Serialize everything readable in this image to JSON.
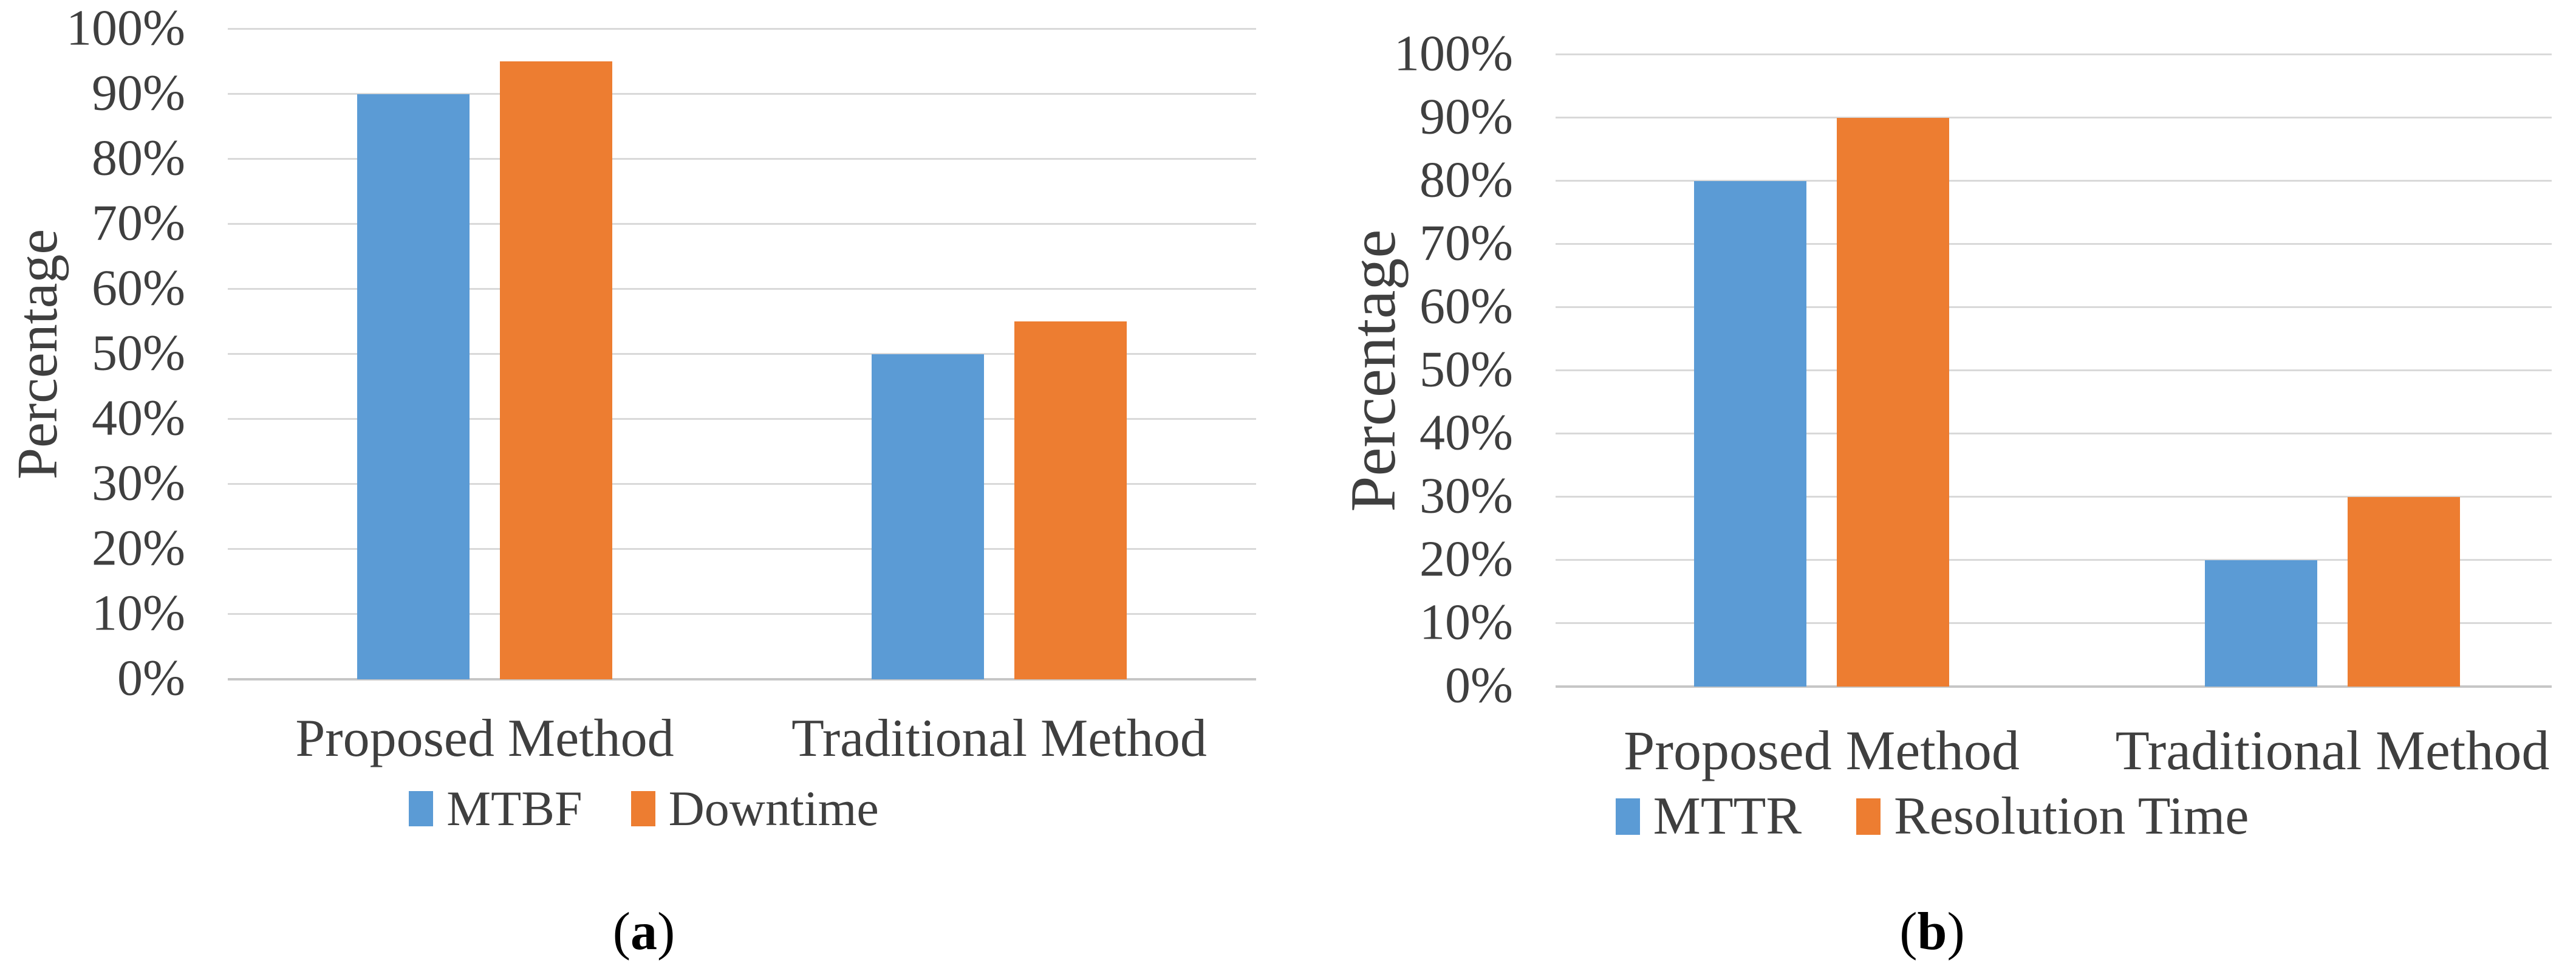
{
  "colors": {
    "series_blue": "#5B9BD5",
    "series_orange": "#ED7D31",
    "gridline": "#d9d9d9",
    "axis_baseline": "#c6c6c6",
    "axis_text": "#3f3f3f",
    "caption_text": "#000000",
    "background": "#ffffff"
  },
  "chart_data": [
    {
      "type": "bar",
      "caption_open": "(",
      "caption_letter": "a",
      "caption_close": ")",
      "ylabel": "Percentage",
      "categories": [
        "Proposed Method",
        "Traditional Method"
      ],
      "series": [
        {
          "name": "MTBF",
          "color": "#5B9BD5",
          "values": [
            90,
            50
          ]
        },
        {
          "name": "Downtime",
          "color": "#ED7D31",
          "values": [
            95,
            55
          ]
        }
      ],
      "ylim": [
        0,
        100
      ],
      "ytick_step": 10,
      "yticklabels": [
        "0%",
        "10%",
        "20%",
        "30%",
        "40%",
        "50%",
        "60%",
        "70%",
        "80%",
        "90%",
        "100%"
      ],
      "grid": true,
      "legend_position": "bottom"
    },
    {
      "type": "bar",
      "caption_open": "(",
      "caption_letter": "b",
      "caption_close": ")",
      "ylabel": "Percentage",
      "categories": [
        "Proposed Method",
        "Traditional Method"
      ],
      "series": [
        {
          "name": "MTTR",
          "color": "#5B9BD5",
          "values": [
            80,
            20
          ]
        },
        {
          "name": "Resolution Time",
          "color": "#ED7D31",
          "values": [
            90,
            30
          ]
        }
      ],
      "ylim": [
        0,
        100
      ],
      "ytick_step": 10,
      "yticklabels": [
        "0%",
        "10%",
        "20%",
        "30%",
        "40%",
        "50%",
        "60%",
        "70%",
        "80%",
        "90%",
        "100%"
      ],
      "grid": true,
      "legend_position": "bottom"
    }
  ]
}
